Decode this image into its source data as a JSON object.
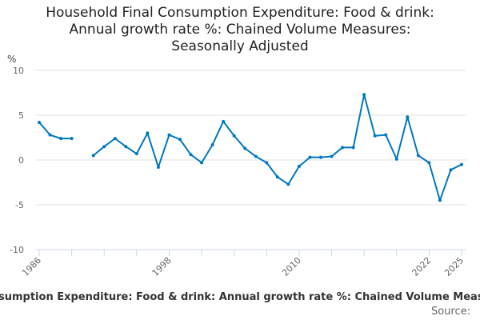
{
  "chart_data": {
    "type": "line",
    "title_lines": [
      "Household Final Consumption Expenditure: Food & drink:",
      "Annual growth rate %: Chained Volume Measures:",
      "Seasonally Adjusted"
    ],
    "ylabel": "%",
    "xlabel": "",
    "ylim": [
      -10,
      10
    ],
    "yticks": [
      10,
      5,
      0,
      -5,
      -10
    ],
    "xlim": [
      1986,
      2025
    ],
    "xtick_labels": [
      "1986",
      "1998",
      "2010",
      "2022",
      "2025"
    ],
    "grid": true,
    "color": "#0077c0",
    "x": [
      1986,
      1987,
      1988,
      1989,
      1990,
      1991,
      1992,
      1993,
      1994,
      1995,
      1996,
      1997,
      1998,
      1999,
      2000,
      2001,
      2002,
      2003,
      2004,
      2005,
      2006,
      2007,
      2008,
      2009,
      2010,
      2011,
      2012,
      2013,
      2014,
      2015,
      2016,
      2017,
      2018,
      2019,
      2020,
      2021,
      2022,
      2023,
      2024,
      2025
    ],
    "y": [
      4.2,
      2.8,
      2.4,
      2.4,
      null,
      0.5,
      1.5,
      2.4,
      1.5,
      0.7,
      3.0,
      -0.8,
      2.8,
      2.3,
      0.6,
      -0.3,
      1.7,
      4.3,
      2.7,
      1.3,
      0.4,
      -0.3,
      -1.9,
      -2.7,
      -0.7,
      0.3,
      0.3,
      0.4,
      1.4,
      1.4,
      7.3,
      2.7,
      2.8,
      0.1,
      4.8,
      0.5,
      -0.3,
      -4.5,
      -1.1,
      -0.5
    ]
  },
  "footer_text": "sumption Expenditure: Food & drink: Annual growth rate %: Chained Volume Measure",
  "source_label": "Source:"
}
